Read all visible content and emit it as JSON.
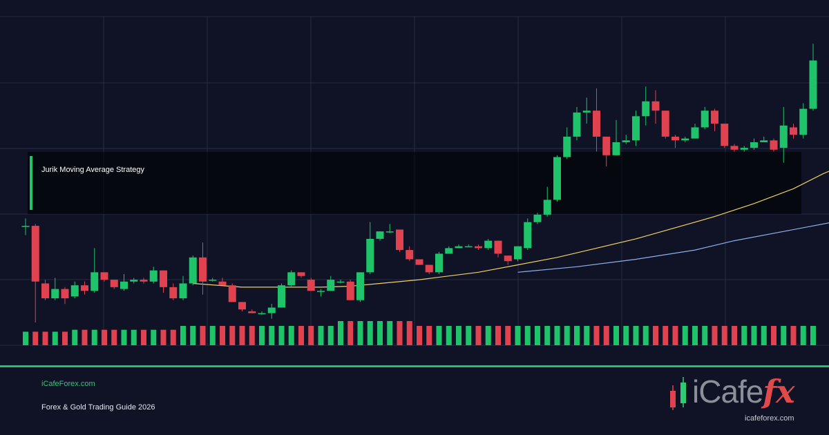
{
  "chart_data": {
    "type": "candlestick",
    "title": "Jurik Moving Average Strategy",
    "series": [
      {
        "name": "price",
        "kind": "ohlc",
        "candles": [
          [
            1.5,
            1.5,
            1.54,
            1.45
          ],
          [
            1.5,
            1.2,
            1.51,
            0.98
          ],
          [
            1.19,
            1.11,
            1.21,
            1.1
          ],
          [
            1.11,
            1.16,
            1.22,
            1.1
          ],
          [
            1.16,
            1.11,
            1.17,
            1.08
          ],
          [
            1.12,
            1.18,
            1.2,
            1.11
          ],
          [
            1.18,
            1.15,
            1.2,
            1.13
          ],
          [
            1.15,
            1.25,
            1.38,
            1.14
          ],
          [
            1.25,
            1.21,
            1.25,
            1.2
          ],
          [
            1.21,
            1.17,
            1.21,
            1.16
          ],
          [
            1.16,
            1.2,
            1.24,
            1.15
          ],
          [
            1.2,
            1.21,
            1.22,
            1.19
          ],
          [
            1.21,
            1.2,
            1.22,
            1.19
          ],
          [
            1.2,
            1.26,
            1.28,
            1.19
          ],
          [
            1.26,
            1.17,
            1.26,
            1.14
          ],
          [
            1.17,
            1.11,
            1.19,
            1.1
          ],
          [
            1.11,
            1.19,
            1.23,
            1.1
          ],
          [
            1.19,
            1.33,
            1.34,
            1.18
          ],
          [
            1.33,
            1.2,
            1.41,
            1.13
          ],
          [
            1.21,
            1.21,
            1.22,
            1.2
          ],
          [
            1.2,
            1.18,
            1.22,
            1.18
          ],
          [
            1.18,
            1.09,
            1.19,
            1.09
          ],
          [
            1.09,
            1.05,
            1.09,
            1.04
          ],
          [
            1.04,
            1.03,
            1.05,
            1.03
          ],
          [
            1.03,
            1.03,
            1.04,
            1.02
          ],
          [
            1.03,
            1.06,
            1.08,
            1.0
          ],
          [
            1.06,
            1.18,
            1.19,
            1.06
          ],
          [
            1.18,
            1.25,
            1.26,
            1.17
          ],
          [
            1.25,
            1.23,
            1.25,
            1.22
          ],
          [
            1.21,
            1.15,
            1.22,
            1.15
          ],
          [
            1.15,
            1.15,
            1.16,
            1.12
          ],
          [
            1.15,
            1.21,
            1.23,
            1.15
          ],
          [
            1.2,
            1.2,
            1.21,
            1.19
          ],
          [
            1.2,
            1.1,
            1.21,
            1.1
          ],
          [
            1.1,
            1.25,
            1.25,
            1.09
          ],
          [
            1.25,
            1.43,
            1.52,
            1.24
          ],
          [
            1.43,
            1.47,
            1.47,
            1.42
          ],
          [
            1.47,
            1.47,
            1.51,
            1.46
          ],
          [
            1.48,
            1.37,
            1.48,
            1.36
          ],
          [
            1.37,
            1.32,
            1.39,
            1.31
          ],
          [
            1.32,
            1.29,
            1.32,
            1.29
          ],
          [
            1.29,
            1.25,
            1.29,
            1.24
          ],
          [
            1.25,
            1.35,
            1.36,
            1.24
          ],
          [
            1.35,
            1.38,
            1.39,
            1.35
          ],
          [
            1.38,
            1.39,
            1.4,
            1.38
          ],
          [
            1.39,
            1.39,
            1.4,
            1.39
          ],
          [
            1.39,
            1.38,
            1.4,
            1.37
          ],
          [
            1.38,
            1.42,
            1.43,
            1.37
          ],
          [
            1.42,
            1.35,
            1.42,
            1.33
          ],
          [
            1.34,
            1.31,
            1.34,
            1.29
          ],
          [
            1.32,
            1.39,
            1.39,
            1.31
          ],
          [
            1.38,
            1.52,
            1.54,
            1.37
          ],
          [
            1.52,
            1.56,
            1.57,
            1.51
          ],
          [
            1.56,
            1.64,
            1.71,
            1.55
          ],
          [
            1.64,
            1.87,
            1.88,
            1.63
          ],
          [
            1.87,
            1.98,
            2.03,
            1.86
          ],
          [
            1.98,
            2.11,
            2.14,
            1.96
          ],
          [
            2.11,
            2.12,
            2.19,
            2.05
          ],
          [
            2.12,
            1.98,
            2.24,
            1.9
          ],
          [
            1.98,
            1.88,
            1.98,
            1.82
          ],
          [
            1.88,
            1.95,
            2.07,
            1.88
          ],
          [
            1.95,
            1.96,
            1.99,
            1.94
          ],
          [
            1.96,
            2.09,
            2.12,
            1.93
          ],
          [
            2.09,
            2.17,
            2.25,
            2.04
          ],
          [
            2.17,
            2.12,
            2.23,
            2.05
          ],
          [
            2.12,
            1.98,
            2.12,
            1.97
          ],
          [
            1.98,
            1.96,
            1.99,
            1.92
          ],
          [
            1.96,
            1.97,
            1.98,
            1.95
          ],
          [
            1.97,
            2.03,
            2.05,
            1.97
          ],
          [
            2.03,
            2.12,
            2.14,
            2.02
          ],
          [
            2.12,
            2.05,
            2.13,
            2.01
          ],
          [
            2.05,
            1.93,
            2.05,
            1.92
          ],
          [
            1.93,
            1.91,
            1.94,
            1.9
          ],
          [
            1.91,
            1.92,
            1.93,
            1.9
          ],
          [
            1.92,
            1.95,
            1.97,
            1.91
          ],
          [
            1.95,
            1.96,
            1.98,
            1.95
          ],
          [
            1.96,
            1.91,
            1.97,
            1.9
          ],
          [
            1.92,
            2.04,
            2.14,
            1.84
          ],
          [
            2.03,
            1.99,
            2.05,
            1.97
          ],
          [
            1.99,
            2.13,
            2.16,
            1.97
          ],
          [
            2.13,
            2.39,
            2.48,
            2.12
          ]
        ]
      },
      {
        "name": "",
        "kind": "line",
        "color": "#f2d264",
        "values": [
          [
            17,
            1.19
          ],
          [
            22,
            1.17
          ],
          [
            26,
            1.17
          ],
          [
            30,
            1.17
          ],
          [
            33,
            1.175
          ],
          [
            36,
            1.19
          ],
          [
            40,
            1.21
          ],
          [
            46,
            1.25
          ],
          [
            50,
            1.29
          ],
          [
            54,
            1.33
          ],
          [
            58,
            1.38
          ],
          [
            62,
            1.43
          ],
          [
            66,
            1.49
          ],
          [
            70,
            1.55
          ],
          [
            74,
            1.62
          ],
          [
            78,
            1.7
          ],
          [
            81,
            1.78
          ],
          [
            85,
            1.87
          ],
          [
            89,
            1.93
          ],
          [
            92,
            1.96
          ],
          [
            97,
            2.0
          ],
          [
            101,
            1.99
          ],
          [
            105,
            1.98
          ],
          [
            108,
            2.0
          ],
          [
            110,
            2.03
          ]
        ]
      },
      {
        "name": "",
        "kind": "line",
        "color": "#8fb0ee",
        "values": [
          [
            50,
            1.25
          ],
          [
            56,
            1.28
          ],
          [
            62,
            1.32
          ],
          [
            68,
            1.37
          ],
          [
            72,
            1.42
          ],
          [
            77,
            1.47
          ],
          [
            82,
            1.52
          ],
          [
            86,
            1.56
          ],
          [
            90,
            1.6
          ],
          [
            95,
            1.65
          ],
          [
            100,
            1.7
          ],
          [
            104,
            1.74
          ],
          [
            108,
            1.79
          ],
          [
            110,
            1.82
          ]
        ]
      }
    ],
    "volume": [
      14,
      14,
      14,
      14,
      14,
      16,
      16,
      16,
      16,
      16,
      16,
      16,
      16,
      16,
      16,
      16,
      20,
      20,
      20,
      20,
      20,
      20,
      20,
      20,
      20,
      20,
      20,
      20,
      20,
      20,
      20,
      20,
      25,
      25,
      25,
      25,
      25,
      25,
      25,
      25,
      20,
      20,
      20,
      20,
      20,
      20,
      20,
      20,
      20,
      20,
      20,
      20,
      20,
      20,
      20,
      20,
      20,
      20,
      20,
      20,
      20,
      20,
      20,
      20,
      20,
      20,
      20,
      20,
      20,
      20,
      20,
      20,
      20,
      20,
      20,
      20,
      20,
      20,
      20,
      20,
      20
    ],
    "grid": true
  },
  "footer": {
    "site": "iCafeForex.com",
    "subtitle": "Forex & Gold Trading Guide 2026"
  },
  "logo": {
    "text_main": "iCafe",
    "text_accent": "fx",
    "url": "icafeforex.com"
  },
  "colors": {
    "background": "#0f1325",
    "up": "#1fc46a",
    "down": "#e0424f",
    "grid": "#262b44",
    "divider": "#1fc46a"
  }
}
